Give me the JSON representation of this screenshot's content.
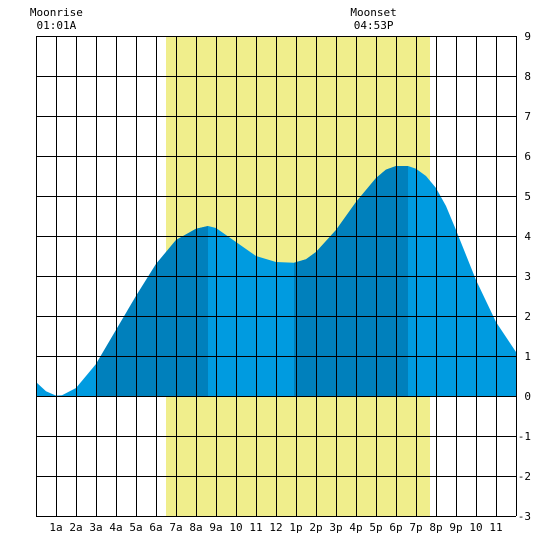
{
  "chart_data": {
    "type": "area",
    "title": "",
    "xlabel": "",
    "ylabel": "",
    "x_ticks": [
      "1a",
      "2a",
      "3a",
      "4a",
      "5a",
      "6a",
      "7a",
      "8a",
      "9a",
      "10",
      "11",
      "12",
      "1p",
      "2p",
      "3p",
      "4p",
      "5p",
      "6p",
      "7p",
      "8p",
      "9p",
      "10",
      "11"
    ],
    "xlim": [
      0,
      24
    ],
    "ylim": [
      -3,
      9
    ],
    "y_ticks": [
      -3,
      -2,
      -1,
      0,
      1,
      2,
      3,
      4,
      5,
      6,
      7,
      8,
      9
    ],
    "grid": true,
    "daylight": {
      "start_hour": 6.5,
      "end_hour": 19.7,
      "color": "#f0ee8c"
    },
    "tide_curve": {
      "x": [
        0,
        0.5,
        1,
        1.3,
        2,
        3,
        4,
        5,
        6,
        7,
        8,
        8.6,
        9,
        10,
        11,
        12,
        12.9,
        13.5,
        14,
        15,
        16,
        17,
        17.5,
        18,
        18.6,
        19,
        19.5,
        20,
        20.5,
        21,
        22,
        23,
        24
      ],
      "y": [
        0.35,
        0.12,
        0.01,
        0.02,
        0.2,
        0.8,
        1.65,
        2.5,
        3.3,
        3.9,
        4.18,
        4.25,
        4.2,
        3.85,
        3.5,
        3.35,
        3.33,
        3.42,
        3.6,
        4.15,
        4.85,
        5.45,
        5.66,
        5.75,
        5.75,
        5.68,
        5.5,
        5.2,
        4.75,
        4.15,
        2.9,
        1.85,
        1.1
      ]
    },
    "tide_bands": [
      {
        "from_hour": 3.0,
        "to_hour": 8.6,
        "color": "#0080bc"
      },
      {
        "from_hour": 12.9,
        "to_hour": 18.6,
        "color": "#0080bc"
      }
    ],
    "tide_fill_color": "#009be0",
    "annotations": [
      {
        "label": "Moonrise",
        "time": "01:01A",
        "hour": 1.02
      },
      {
        "label": "Moonset",
        "time": "04:53P",
        "hour": 16.88
      }
    ]
  }
}
